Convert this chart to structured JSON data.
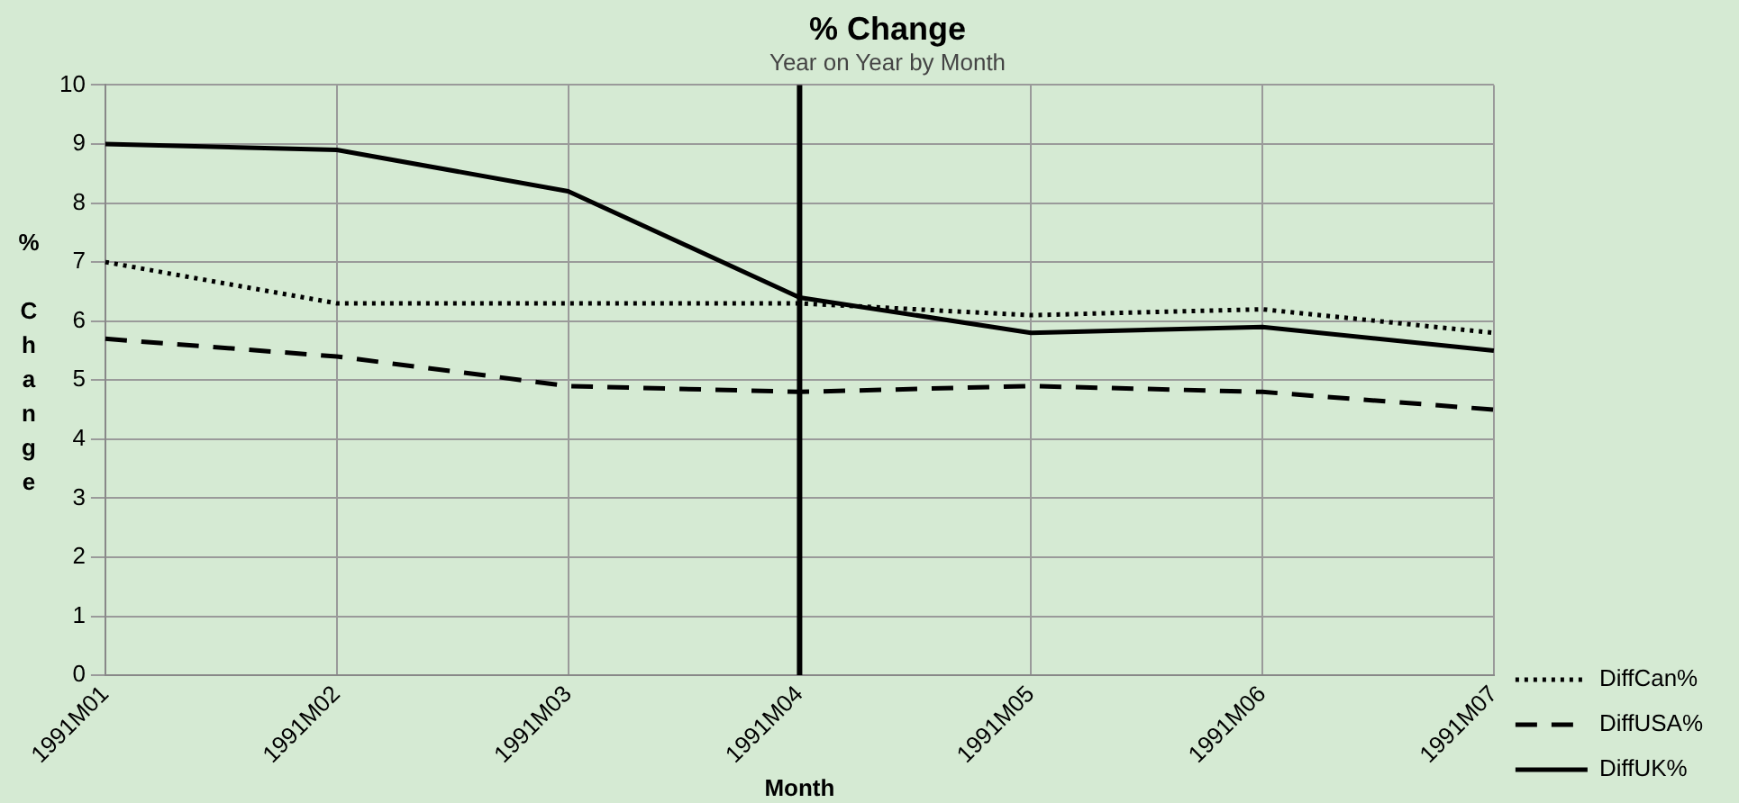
{
  "chart_data": {
    "type": "line",
    "title": "% Change",
    "subtitle": "Year on Year by Month",
    "xlabel": "Month",
    "ylabel": "% Change",
    "categories": [
      "1991M01",
      "1991M02",
      "1991M03",
      "1991M04",
      "1991M05",
      "1991M06",
      "1991M07"
    ],
    "series": [
      {
        "name": "DiffCan%",
        "color": "#000000",
        "line_style": "dotted",
        "values": [
          7.0,
          6.3,
          6.3,
          6.3,
          6.1,
          6.2,
          5.8
        ]
      },
      {
        "name": "DiffUSA%",
        "color": "#000000",
        "line_style": "dashed",
        "values": [
          5.7,
          5.4,
          4.9,
          4.8,
          4.9,
          4.8,
          4.5
        ]
      },
      {
        "name": "DiffUK%",
        "color": "#000000",
        "line_style": "solid",
        "values": [
          9.0,
          8.9,
          8.2,
          6.4,
          5.8,
          5.9,
          5.5
        ]
      }
    ],
    "ylim": [
      0,
      10
    ],
    "yticks": [
      0,
      1,
      2,
      3,
      4,
      5,
      6,
      7,
      8,
      9,
      10
    ],
    "grid": true,
    "legend": "right",
    "marker": "none",
    "ref_lines": [
      {
        "axis": "x",
        "value": "1991M04",
        "color": "#000000"
      }
    ]
  }
}
